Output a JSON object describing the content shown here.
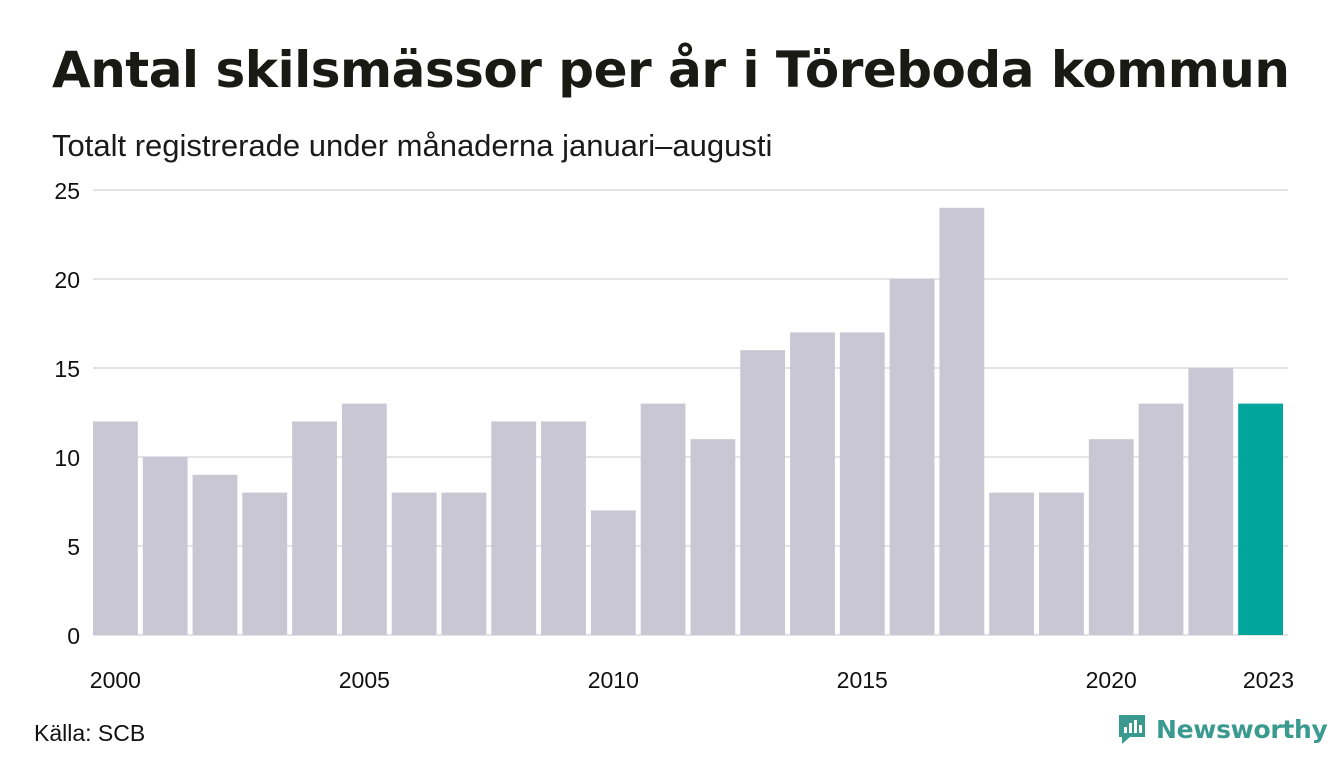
{
  "title": "Antal skilsmässor per år i Töreboda kommun",
  "subtitle": "Totalt registrerade under månaderna januari–augusti",
  "source": "Källa: SCB",
  "brand": "Newsworthy",
  "colors": {
    "bar": "#c8c7d3",
    "highlight": "#00a69c",
    "grid": "#e4e4e8",
    "brand": "#3a9a8f"
  },
  "chart_data": {
    "type": "bar",
    "title": "Antal skilsmässor per år i Töreboda kommun",
    "subtitle": "Totalt registrerade under månaderna januari–augusti",
    "xlabel": "",
    "ylabel": "",
    "categories": [
      2000,
      2001,
      2002,
      2003,
      2004,
      2005,
      2006,
      2007,
      2008,
      2009,
      2010,
      2011,
      2012,
      2013,
      2014,
      2015,
      2016,
      2017,
      2018,
      2019,
      2020,
      2021,
      2022,
      2023
    ],
    "values": [
      12,
      10,
      9,
      8,
      12,
      13,
      8,
      8,
      12,
      12,
      7,
      13,
      11,
      16,
      17,
      17,
      20,
      24,
      8,
      8,
      11,
      13,
      15,
      13
    ],
    "highlight_category": 2023,
    "ylim": [
      0,
      25
    ],
    "yticks": [
      0,
      5,
      10,
      15,
      20,
      25
    ],
    "xtick_labels": [
      "2000",
      "2005",
      "2010",
      "2015",
      "2020",
      "2023"
    ],
    "grid": true,
    "legend": "none"
  }
}
